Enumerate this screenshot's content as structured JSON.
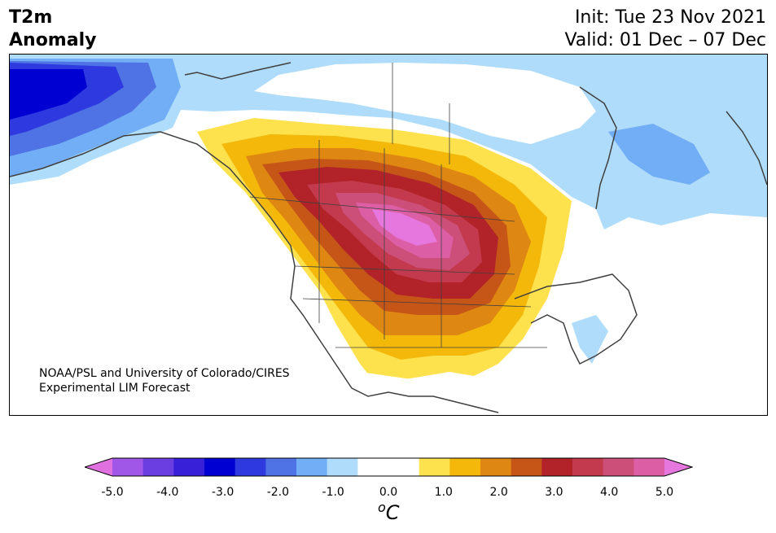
{
  "header": {
    "title_line1": "T2m",
    "title_line2": "Anomaly",
    "init": "Init: Tue 23 Nov 2021",
    "valid": "Valid: 01 Dec – 07 Dec"
  },
  "map": {
    "credit_line1": "NOAA/PSL and University of Colorado/CIRES",
    "credit_line2": "Experimental LIM Forecast"
  },
  "colorbar": {
    "ticks": [
      "-5.0",
      "-4.0",
      "-3.0",
      "-2.0",
      "-1.0",
      "0.0",
      "1.0",
      "2.0",
      "3.0",
      "4.0",
      "5.0"
    ],
    "unit_base": "o",
    "unit_letter": "C",
    "colors": [
      "#e070e0",
      "#a057e8",
      "#6a3ee0",
      "#3720d8",
      "#0000d2",
      "#2e3ae0",
      "#4f72e4",
      "#72aef5",
      "#aedcfa",
      "#ffffff",
      "#ffffff",
      "#fde24e",
      "#f3b80a",
      "#df8713",
      "#c65518",
      "#b12328",
      "#c33a4e",
      "#cc4f79",
      "#dc5fa6",
      "#e577de"
    ]
  }
}
